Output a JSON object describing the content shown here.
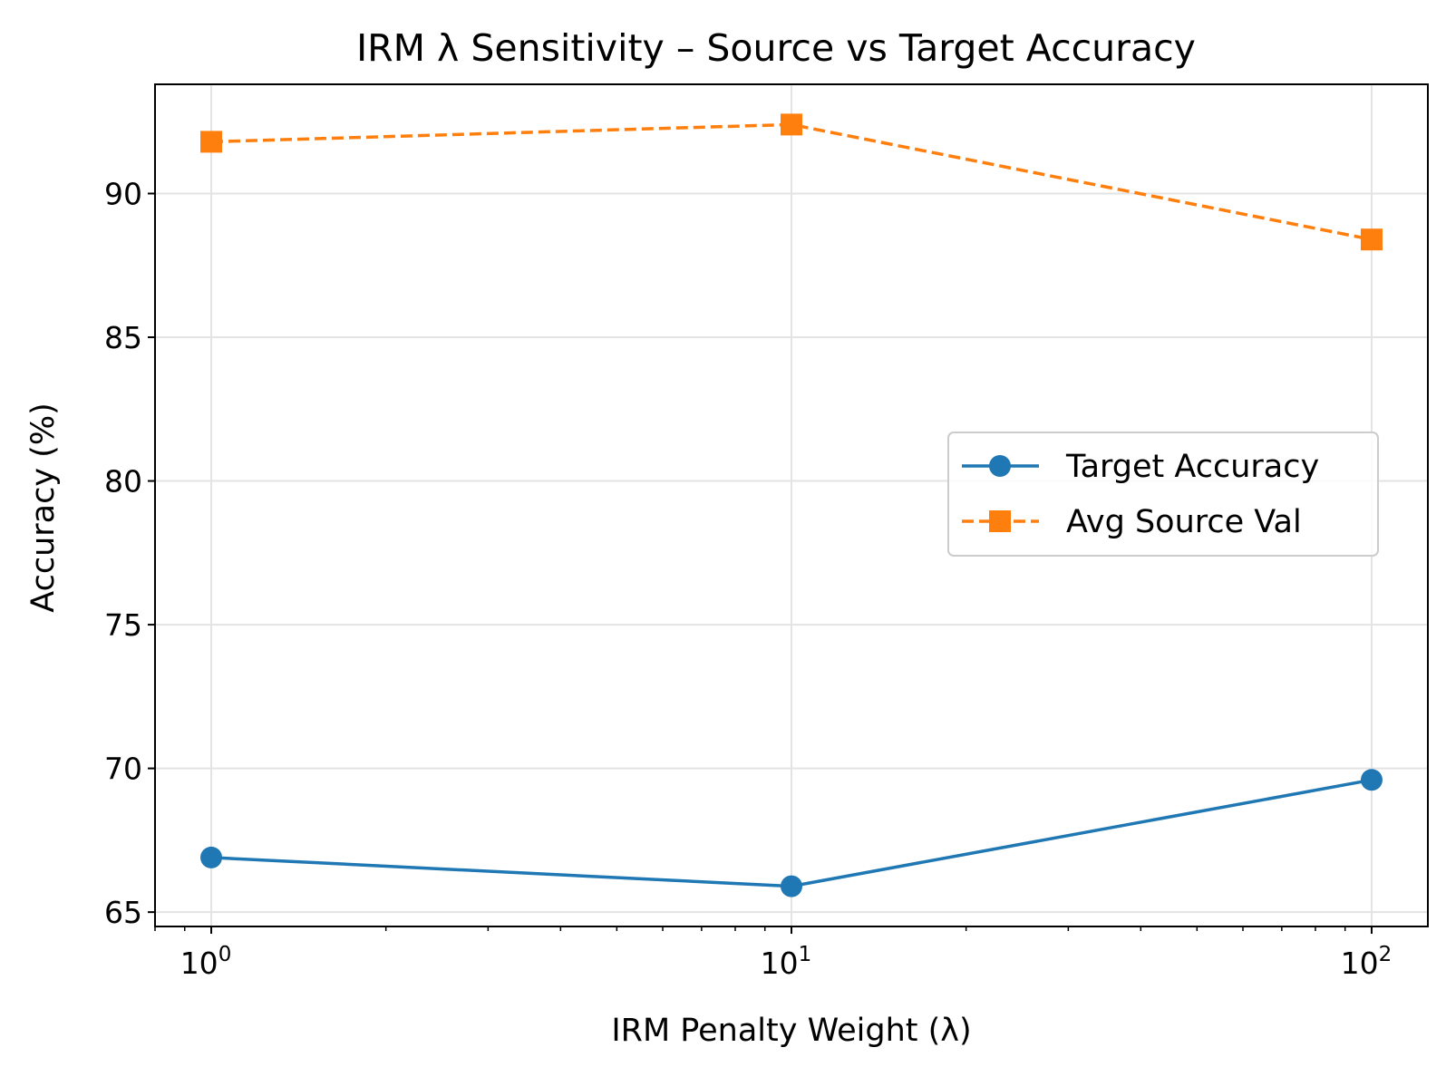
{
  "chart_data": {
    "type": "line",
    "title": "IRM λ Sensitivity – Source vs Target Accuracy",
    "xlabel": "IRM Penalty Weight (λ)",
    "ylabel": "Accuracy (%)",
    "xscale": "log",
    "xlim": [
      0.8,
      125
    ],
    "ylim": [
      64.5,
      93.8
    ],
    "x": [
      1,
      10,
      100
    ],
    "xticks": [
      {
        "value": 1,
        "base": "10",
        "exp": "0"
      },
      {
        "value": 10,
        "base": "10",
        "exp": "1"
      },
      {
        "value": 100,
        "base": "10",
        "exp": "2"
      }
    ],
    "yticks": [
      65,
      70,
      75,
      80,
      85,
      90
    ],
    "grid": true,
    "legend_position": "center-right",
    "series": [
      {
        "name": "Target Accuracy",
        "values": [
          66.9,
          65.9,
          69.6
        ],
        "color": "#1f77b4",
        "marker": "circle",
        "linestyle": "solid"
      },
      {
        "name": "Avg Source Val",
        "values": [
          91.8,
          92.4,
          88.4
        ],
        "color": "#ff7f0e",
        "marker": "square",
        "linestyle": "dashed"
      }
    ]
  }
}
